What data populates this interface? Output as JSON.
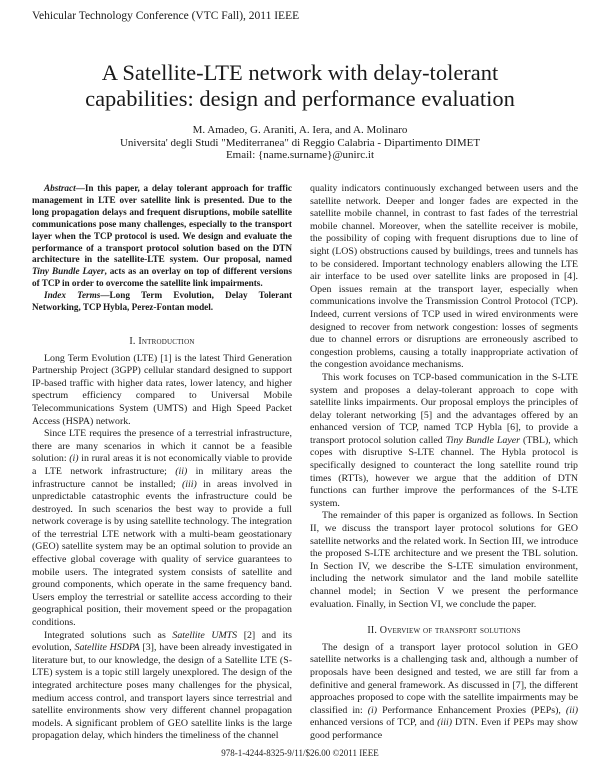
{
  "header": {
    "conference": "Vehicular Technology Conference (VTC Fall), 2011 IEEE"
  },
  "title": [
    "A Satellite-LTE network with delay-tolerant",
    "capabilities: design and performance evaluation"
  ],
  "authors": {
    "names": "M. Amadeo, G. Araniti, A. Iera, and A. Molinaro",
    "affiliation": "Universita' degli Studi \"Mediterranea\" di Reggio Calabria - Dipartimento DIMET",
    "email": "Email: {name.surname}@unirc.it"
  },
  "abstract": {
    "label": "Abstract",
    "text": "—In this paper, a delay tolerant approach for traffic management in LTE over satellite link is presented. Due to the long propagation delays and frequent disruptions, mobile satellite communications pose many challenges, especially to the transport layer when the TCP protocol is used. We design and evaluate the performance of a transport protocol solution based on the DTN architecture in the satellite-LTE system. Our proposal, named ",
    "italic": "Tiny Bundle Layer",
    "text2": ", acts as an overlay on top of different versions of TCP in order to overcome the satellite link impairments.",
    "index_label": "Index Terms",
    "index_text": "—Long Term Evolution, Delay Tolerant Networking, TCP Hybla, Perez-Fontan model."
  },
  "sections": {
    "intro_heading": "I. Introduction",
    "intro_p1": "Long Term Evolution (LTE) [1] is the latest Third Generation Partnership Project (3GPP) cellular standard designed to support IP-based traffic with higher data rates, lower latency, and higher spectrum efficiency compared to Universal Mobile Telecommunications System (UMTS) and High Speed Packet Access (HSPA) network.",
    "intro_p2a": "Since LTE requires the presence of a terrestrial infrastructure, there are many scenarios in which it cannot be a feasible solution: ",
    "i1": "(i)",
    "intro_p2b": " in rural areas it is not economically viable to provide a LTE network infrastructure; ",
    "i2": "(ii)",
    "intro_p2c": " in military areas the infrastructure cannot be installed; ",
    "i3": "(iii)",
    "intro_p2d": " in areas involved in unpredictable catastrophic events the infrastructure could be destroyed. In such scenarios the best way to provide a full network coverage is by using satellite technology. The integration of the terrestrial LTE network with a multi-beam geostationary (GEO) satellite system may be an optimal solution to provide an effective global coverage with quality of service guarantees to mobile users. The integrated system consists of satellite and ground components, which operate in the same frequency band. Users employ the terrestrial or satellite access according to their geographical position, their movement speed or the propagation conditions.",
    "intro_p3a": "Integrated solutions such as ",
    "sat_umts": "Satellite UMTS",
    "intro_p3b": " [2] and its evolution, ",
    "sat_hsdpa": "Satellite HSDPA",
    "intro_p3c": " [3], have been already investigated in literature but, to our knowledge, the design of a Satellite LTE (S-LTE) system is a topic still largely unexplored. The design of the integrated architecture poses many challenges for the physical, medium access control, and transport layers since terrestrial and satellite environments show very different channel propagation models. A significant problem of GEO satellite links is the large propagation delay, which hinders the timeliness of the channel quality indicators continuously exchanged between users and the satellite network. Deeper and longer fades are expected in the satellite mobile channel, in contrast to fast fades of the terrestrial mobile channel. Moreover, when the satellite receiver is mobile, the possibility of coping with frequent disruptions due to line of sight (LOS) obstructions caused by buildings, trees and tunnels has to be considered. Important technology enablers allowing the LTE air interface to be used over satellite links are proposed in [4]. Open issues remain at the transport layer, especially when communications involve the Transmission Control Protocol (TCP). Indeed, current versions of TCP used in wired environments were designed to recover from network congestion: losses of segments due to channel errors or disruptions are erroneously ascribed to congestion problems, causing a totally inappropriate activation of the congestion avoidance mechanisms.",
    "intro_p4a": "This work focuses on TCP-based communication in the S-LTE system and proposes a delay-tolerant approach to cope with satellite links impairments. Our proposal employs the principles of delay tolerant networking [5] and the advantages offered by an enhanced version of TCP, named TCP Hybla [6], to provide a transport protocol solution called ",
    "tbl": "Tiny Bundle Layer",
    "intro_p4b": " (TBL), which copes with disruptive S-LTE channel. The Hybla protocol is specifically designed to counteract the long satellite round trip times (RTTs), however we argue that the addition of DTN functions can further improve the performances of the S-LTE system.",
    "intro_p5": "The remainder of this paper is organized as follows. In Section II, we discuss the transport layer protocol solutions for GEO satellite networks and the related work. In Section III, we introduce the proposed S-LTE architecture and we present the TBL solution. In Section IV, we describe the S-LTE simulation environment, including the network simulator and the land mobile satellite channel model; in Section V we present the performance evaluation. Finally, in Section VI, we conclude the paper.",
    "sec2_heading": "II. Overview of transport solutions",
    "sec2_p1a": "The design of a transport layer protocol solution in GEO satellite networks is a challenging task and, although a number of proposals have been designed and tested, we are still far from a definitive and general framework. As discussed in [7], the different approaches proposed to cope with the satellite impairments may be classified in: ",
    "s1": "(i)",
    "sec2_p1b": " Performance Enhancement Proxies (PEPs), ",
    "s2": "(ii)",
    "sec2_p1c": " enhanced versions of TCP, and ",
    "s3": "(iii)",
    "sec2_p1d": " DTN. Even if PEPs may show good performance"
  },
  "footer": "978-1-4244-8325-9/11/$26.00 ©2011 IEEE"
}
